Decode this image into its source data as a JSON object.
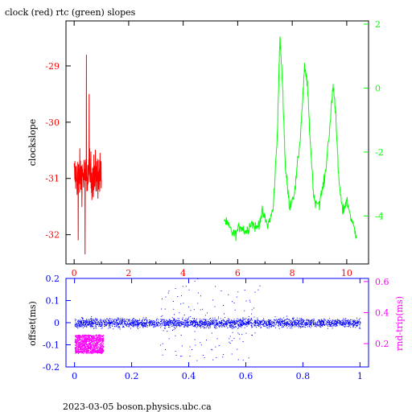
{
  "title": "clock (red) rtc (green) slopes",
  "footer": "2023-03-05  boson.physics.ubc.ca",
  "colors": {
    "clock": "#ff0000",
    "rtc": "#00ff00",
    "offset": "#0000ff",
    "roundtrip": "#ff00ff",
    "axis": "#000000"
  },
  "chart_data": [
    {
      "type": "line",
      "xlim": [
        -0.3,
        10.8
      ],
      "x_ticks": [
        "0",
        "2",
        "4",
        "6",
        "8",
        "10"
      ],
      "left_axis": {
        "label": "clockslope",
        "ylim": [
          -32.52,
          -28.2
        ],
        "ticks": [
          "-29",
          "-30",
          "-31",
          "-32"
        ],
        "color": "#ff0000"
      },
      "right_axis": {
        "label": "",
        "ylim": [
          -5.5,
          2.1
        ],
        "ticks": [
          "2",
          "0",
          "-2",
          "-4"
        ],
        "color": "#00ff00"
      },
      "series": [
        {
          "name": "clock",
          "color": "#ff0000",
          "axis": "left",
          "x_range": [
            0.0,
            1.0
          ],
          "center": -30.95,
          "spread": 0.42,
          "spikes": [
            [
              0.45,
              -28.8
            ],
            [
              0.4,
              -32.35
            ],
            [
              0.15,
              -32.1
            ],
            [
              0.55,
              -29.5
            ]
          ]
        },
        {
          "name": "rtc",
          "color": "#00ff00",
          "axis": "right",
          "x": [
            5.5,
            5.7,
            5.9,
            6.1,
            6.3,
            6.5,
            6.7,
            6.9,
            7.1,
            7.3,
            7.45,
            7.55,
            7.65,
            7.75,
            7.9,
            8.1,
            8.3,
            8.45,
            8.55,
            8.65,
            8.8,
            9.0,
            9.2,
            9.4,
            9.5,
            9.6,
            9.7,
            9.85,
            10.0,
            10.2,
            10.35
          ],
          "values": [
            -4.1,
            -4.4,
            -4.6,
            -4.3,
            -4.5,
            -4.2,
            -4.4,
            -3.9,
            -4.3,
            -3.8,
            -1.5,
            1.6,
            0.0,
            -2.5,
            -3.7,
            -3.2,
            -1.5,
            0.6,
            0.2,
            -1.5,
            -3.5,
            -3.6,
            -2.8,
            -1.0,
            0.1,
            -0.8,
            -2.8,
            -3.9,
            -3.5,
            -4.2,
            -4.6
          ]
        }
      ]
    },
    {
      "type": "scatter",
      "xlim": [
        -0.03,
        1.03
      ],
      "x_ticks": [
        "0",
        "0.2",
        "0.4",
        "0.6",
        "0.8",
        "1"
      ],
      "left_axis": {
        "label": "offset(ms)",
        "ylim": [
          -0.2,
          0.2
        ],
        "ticks": [
          "0.2",
          "0.1",
          "0",
          "-0.1",
          "-0.2"
        ],
        "color": "#0000ff"
      },
      "right_axis": {
        "label": "rnd-trip(ms)",
        "ylim": [
          0.05,
          0.62
        ],
        "ticks": [
          "0.6",
          "0.4",
          "0.2"
        ],
        "color": "#ff00ff"
      },
      "series": [
        {
          "name": "offset",
          "color": "#0000ff",
          "axis": "left",
          "x_range": [
            0.0,
            1.0
          ],
          "band": [
            -0.02,
            0.02
          ],
          "outliers": [
            [
              0.36,
              0.12
            ],
            [
              0.38,
              0.09
            ],
            [
              0.4,
              0.15
            ],
            [
              0.42,
              0.19
            ],
            [
              0.43,
              0.2
            ],
            [
              0.33,
              -0.07
            ],
            [
              0.3,
              -0.1
            ],
            [
              0.52,
              0.08
            ],
            [
              0.55,
              -0.08
            ],
            [
              0.6,
              0.1
            ],
            [
              0.44,
              0.06
            ],
            [
              0.37,
              -0.15
            ],
            [
              0.41,
              -0.12
            ]
          ]
        },
        {
          "name": "roundtrip",
          "color": "#ff00ff",
          "axis": "right",
          "x_range": [
            0.0,
            0.1
          ],
          "band": [
            0.14,
            0.26
          ]
        }
      ]
    }
  ]
}
